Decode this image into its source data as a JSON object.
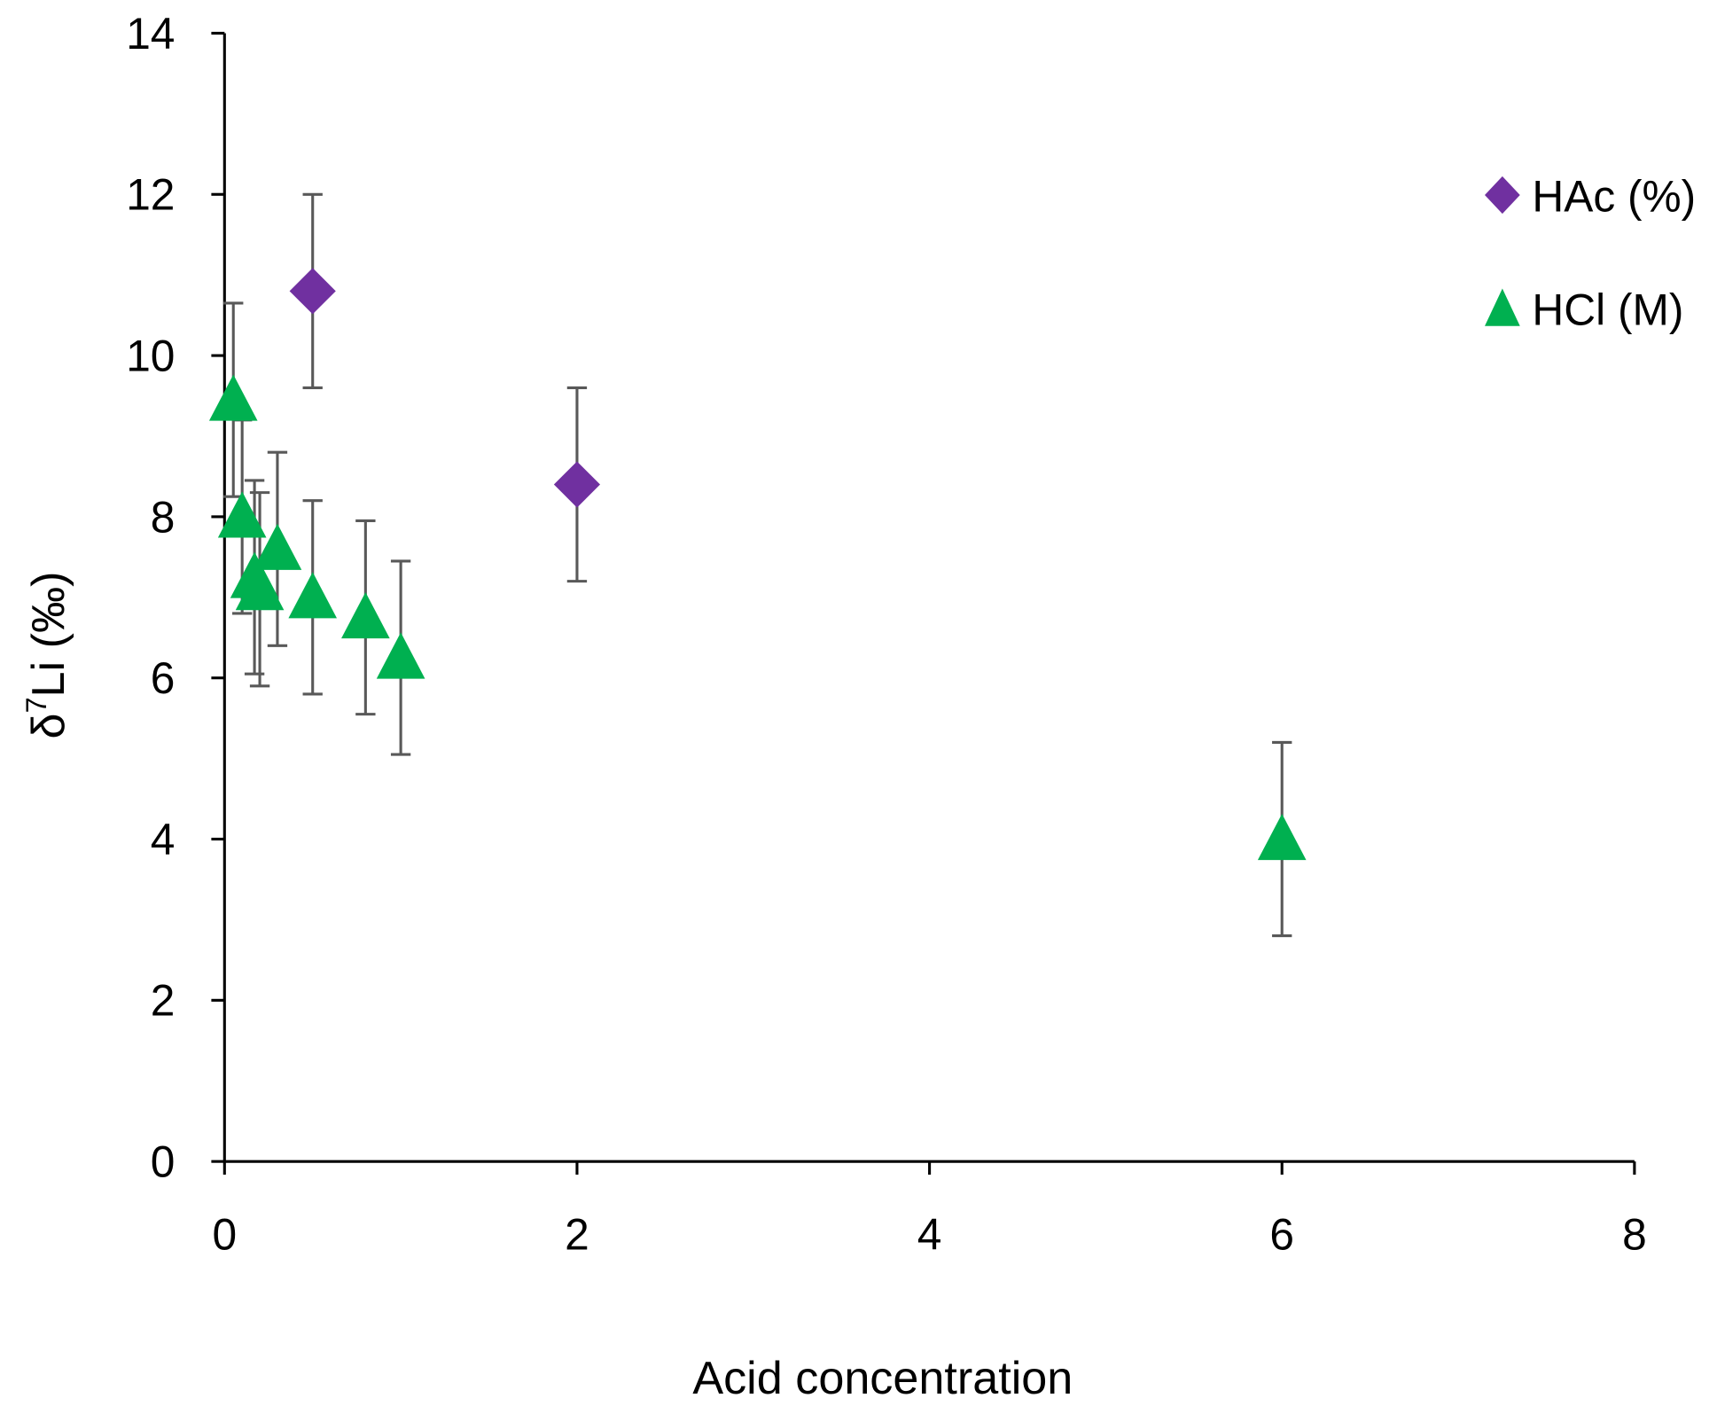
{
  "chart_data": {
    "type": "scatter",
    "title": "",
    "xlabel": "Acid concentration",
    "ylabel_main": "δ",
    "ylabel_sup": "7",
    "ylabel_rest": "Li (‰)",
    "xlim": [
      0,
      8
    ],
    "ylim": [
      0,
      14
    ],
    "xticks": [
      0,
      2,
      4,
      6,
      8
    ],
    "yticks": [
      0,
      2,
      4,
      6,
      8,
      10,
      12,
      14
    ],
    "grid": false,
    "legend_position": "top-right",
    "series": [
      {
        "name": "HAc (%)",
        "marker": "diamond",
        "color": "#7030a0",
        "points": [
          {
            "x": 0.5,
            "y": 10.8,
            "err": 1.2
          },
          {
            "x": 2,
            "y": 8.4,
            "err": 1.2
          }
        ]
      },
      {
        "name": "HCl (M)",
        "marker": "triangle",
        "color": "#00b050",
        "points": [
          {
            "x": 0.05,
            "y": 9.45,
            "err": 1.2
          },
          {
            "x": 0.1,
            "y": 8.0,
            "err": 1.2
          },
          {
            "x": 0.17,
            "y": 7.25,
            "err": 1.2
          },
          {
            "x": 0.2,
            "y": 7.1,
            "err": 1.2
          },
          {
            "x": 0.3,
            "y": 7.6,
            "err": 1.2
          },
          {
            "x": 0.5,
            "y": 7.0,
            "err": 1.2
          },
          {
            "x": 0.8,
            "y": 6.75,
            "err": 1.2
          },
          {
            "x": 1.0,
            "y": 6.25,
            "err": 1.2
          },
          {
            "x": 6.0,
            "y": 4.0,
            "err": 1.2
          }
        ]
      }
    ]
  }
}
